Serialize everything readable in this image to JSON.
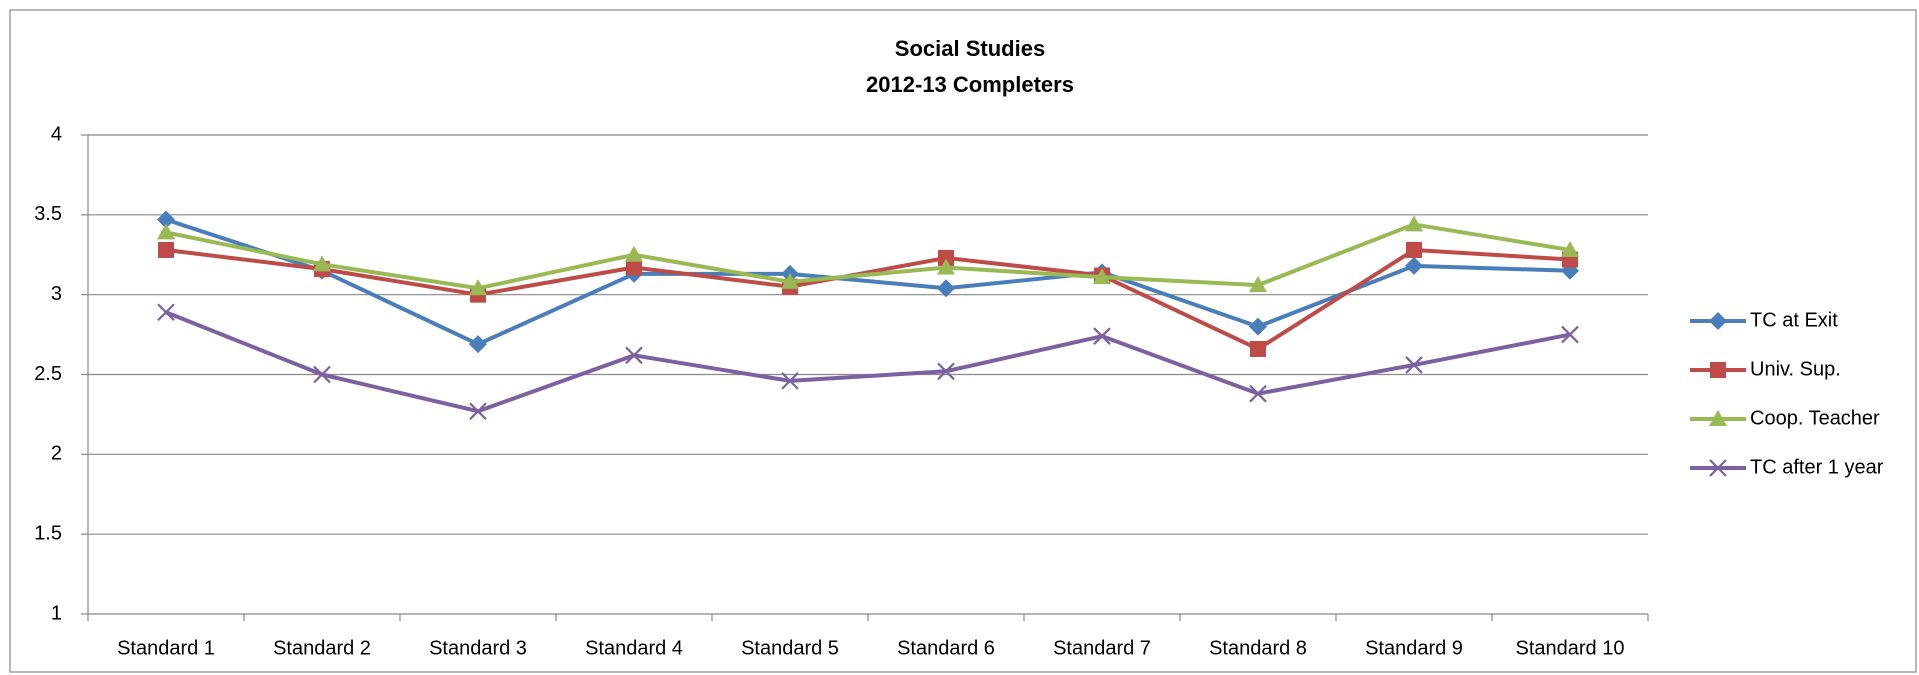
{
  "chart_data": {
    "type": "line",
    "title": "Social Studies",
    "subtitle": "2012-13 Completers",
    "categories": [
      "Standard 1",
      "Standard 2",
      "Standard 3",
      "Standard 4",
      "Standard 5",
      "Standard 6",
      "Standard 7",
      "Standard 8",
      "Standard 9",
      "Standard 10"
    ],
    "series": [
      {
        "name": "TC at Exit",
        "color": "#4a7ebb",
        "values": [
          3.47,
          3.15,
          2.69,
          3.13,
          3.13,
          3.04,
          3.14,
          2.8,
          3.18,
          3.15
        ]
      },
      {
        "name": "Univ. Sup.",
        "color": "#be4b48",
        "values": [
          3.28,
          3.16,
          3.0,
          3.17,
          3.05,
          3.23,
          3.12,
          2.66,
          3.28,
          3.22
        ]
      },
      {
        "name": "Coop. Teacher",
        "color": "#98b954",
        "values": [
          3.39,
          3.19,
          3.04,
          3.25,
          3.08,
          3.17,
          3.11,
          3.06,
          3.44,
          3.28
        ]
      },
      {
        "name": "TC after 1 year",
        "color": "#7d60a0",
        "values": [
          2.89,
          2.5,
          2.27,
          2.62,
          2.46,
          2.52,
          2.74,
          2.38,
          2.56,
          2.75
        ]
      }
    ],
    "ylim": [
      1,
      4
    ],
    "yticks": [
      1,
      1.5,
      2,
      2.5,
      3,
      3.5,
      4
    ],
    "grid": true,
    "legend": "right"
  }
}
